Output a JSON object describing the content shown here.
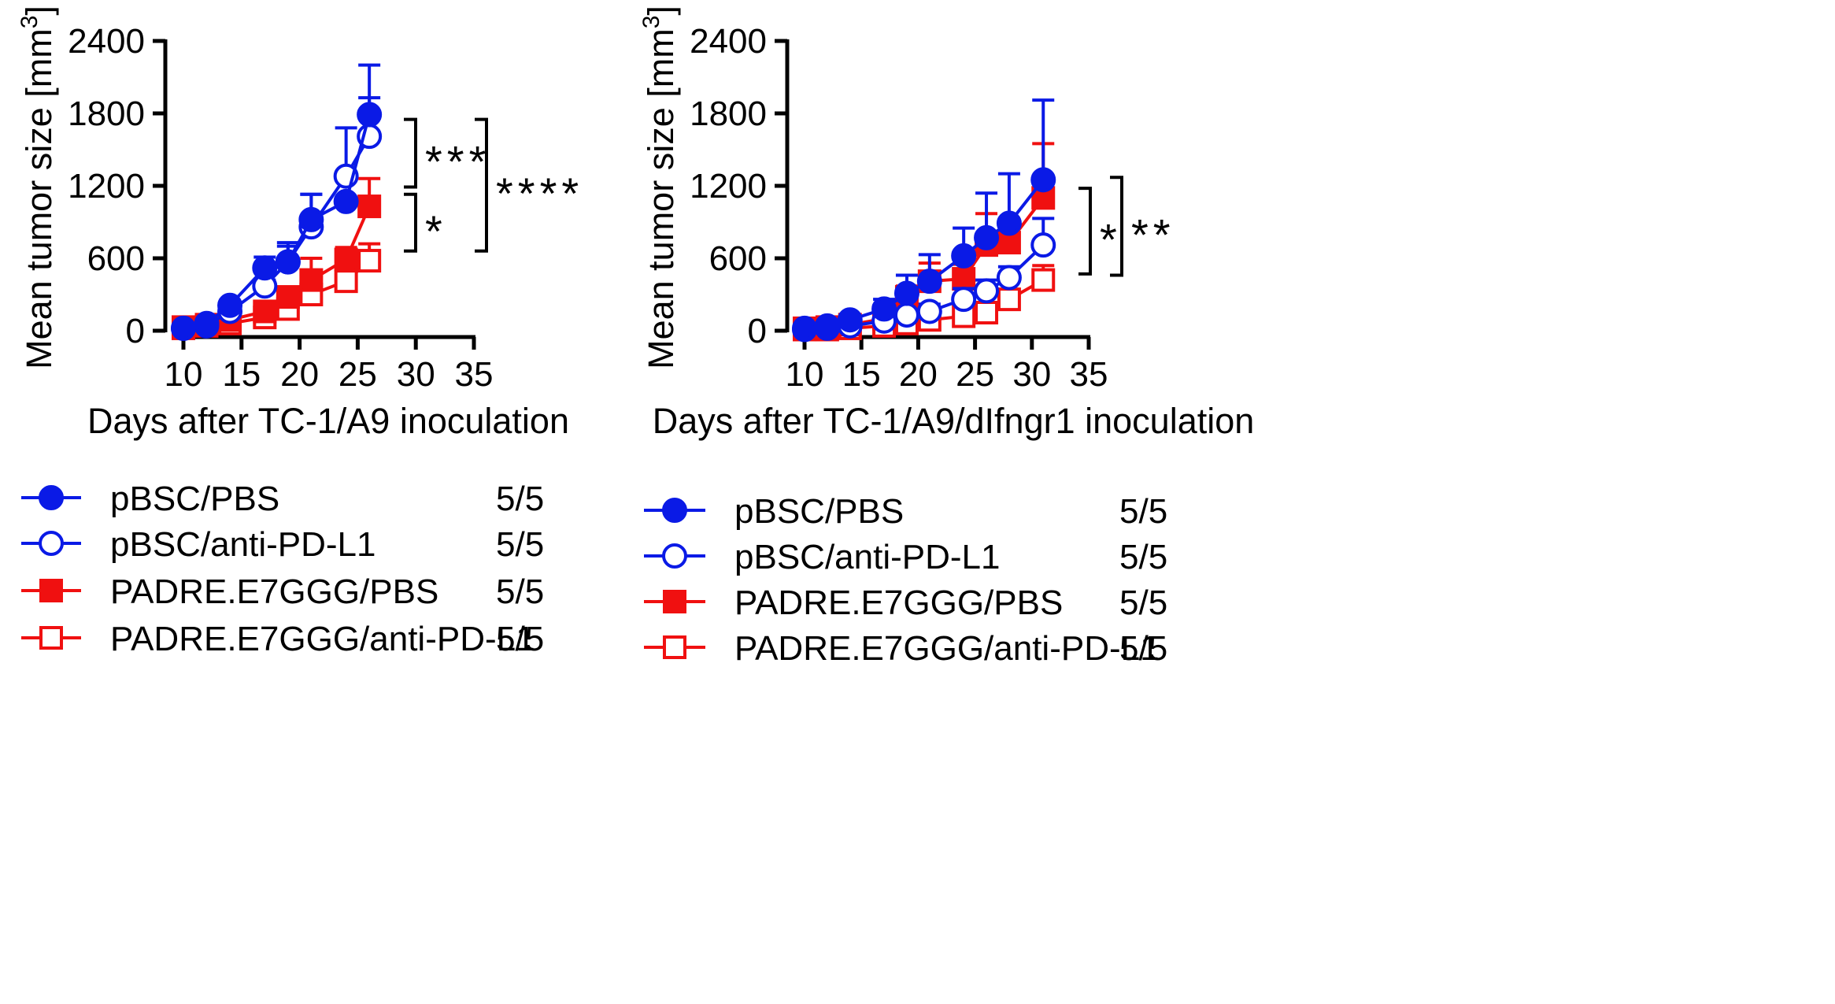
{
  "chart_data": [
    {
      "type": "line",
      "ylabel": "Mean tumor size [mm",
      "ylabel_sup": "3",
      "ylabel_close": "]",
      "xlabel": "Days after TC-1/A9 inoculation",
      "xlim": [
        10,
        35
      ],
      "ylim": [
        0,
        2400
      ],
      "xticks": [
        10,
        15,
        20,
        25,
        30,
        35
      ],
      "yticks": [
        0,
        600,
        1200,
        1800,
        2400
      ],
      "grid": false,
      "legend_position": "bottom",
      "series": [
        {
          "name": "pBSC/PBS",
          "count": "5/5",
          "color": "#0a1ae6",
          "marker": "filled-circle",
          "x": [
            10,
            12,
            14,
            17,
            19,
            21,
            24,
            26
          ],
          "y": [
            20,
            60,
            210,
            520,
            570,
            920,
            1070,
            1790
          ],
          "err": [
            0,
            20,
            40,
            90,
            130,
            210,
            0,
            410
          ]
        },
        {
          "name": "pBSC/anti-PD-L1",
          "count": "5/5",
          "color": "#0a1ae6",
          "marker": "open-circle",
          "x": [
            10,
            12,
            14,
            17,
            19,
            21,
            24,
            26
          ],
          "y": [
            20,
            40,
            160,
            370,
            570,
            860,
            1280,
            1610
          ],
          "err": [
            0,
            15,
            30,
            50,
            160,
            270,
            400,
            320
          ]
        },
        {
          "name": "PADRE.E7GGG/PBS",
          "count": "5/5",
          "color": "#f01010",
          "marker": "filled-square",
          "x": [
            10,
            12,
            14,
            17,
            19,
            21,
            24,
            26
          ],
          "y": [
            30,
            50,
            90,
            160,
            280,
            420,
            590,
            1030
          ],
          "err": [
            0,
            10,
            20,
            40,
            80,
            180,
            100,
            230
          ]
        },
        {
          "name": "PADRE.E7GGG/anti-PD-L1",
          "count": "5/5",
          "color": "#f01010",
          "marker": "open-square",
          "x": [
            10,
            12,
            14,
            17,
            19,
            21,
            24,
            26
          ],
          "y": [
            20,
            40,
            60,
            110,
            180,
            300,
            410,
            580
          ],
          "err": [
            0,
            10,
            15,
            25,
            45,
            60,
            80,
            140
          ]
        }
      ],
      "significance": [
        {
          "label": "***",
          "y_top": 1750,
          "y_bottom": 1190
        },
        {
          "label": "*",
          "y_top": 1130,
          "y_bottom": 660
        },
        {
          "label": "****",
          "y_top": 1750,
          "y_bottom": 660
        }
      ]
    },
    {
      "type": "line",
      "ylabel": "Mean tumor size [mm",
      "ylabel_sup": "3",
      "ylabel_close": "]",
      "xlabel": "Days after TC-1/A9/dIfngr1 inoculation",
      "xlim": [
        10,
        35
      ],
      "ylim": [
        0,
        2400
      ],
      "xticks": [
        10,
        15,
        20,
        25,
        30,
        35
      ],
      "yticks": [
        0,
        600,
        1200,
        1800,
        2400
      ],
      "grid": false,
      "legend_position": "bottom",
      "series": [
        {
          "name": "pBSC/PBS",
          "count": "5/5",
          "color": "#0a1ae6",
          "marker": "filled-circle",
          "x": [
            10,
            12,
            14,
            17,
            19,
            21,
            24,
            26,
            28,
            31
          ],
          "y": [
            20,
            40,
            90,
            180,
            310,
            410,
            620,
            770,
            890,
            1250
          ],
          "err": [
            0,
            15,
            40,
            80,
            150,
            220,
            230,
            370,
            410,
            660
          ]
        },
        {
          "name": "pBSC/anti-PD-L1",
          "count": "5/5",
          "color": "#0a1ae6",
          "marker": "open-circle",
          "x": [
            10,
            12,
            14,
            17,
            19,
            21,
            24,
            26,
            28,
            31
          ],
          "y": [
            10,
            20,
            40,
            80,
            130,
            160,
            260,
            330,
            440,
            710
          ],
          "err": [
            0,
            10,
            15,
            30,
            40,
            60,
            90,
            90,
            90,
            220
          ]
        },
        {
          "name": "PADRE.E7GGG/PBS",
          "count": "5/5",
          "color": "#f01010",
          "marker": "filled-square",
          "x": [
            10,
            12,
            14,
            17,
            19,
            21,
            24,
            26,
            28,
            31
          ],
          "y": [
            20,
            30,
            50,
            100,
            280,
            410,
            430,
            710,
            730,
            1100
          ],
          "err": [
            0,
            10,
            20,
            50,
            90,
            150,
            120,
            260,
            200,
            450
          ]
        },
        {
          "name": "PADRE.E7GGG/anti-PD-L1",
          "count": "5/5",
          "color": "#f01010",
          "marker": "open-square",
          "x": [
            10,
            12,
            14,
            17,
            19,
            21,
            24,
            26,
            28,
            31
          ],
          "y": [
            10,
            10,
            20,
            40,
            60,
            90,
            120,
            150,
            260,
            420
          ],
          "err": [
            0,
            5,
            10,
            20,
            30,
            40,
            40,
            50,
            70,
            120
          ]
        }
      ],
      "significance": [
        {
          "label": "*",
          "y_top": 1180,
          "y_bottom": 470
        },
        {
          "label": "**",
          "y_top": 1270,
          "y_bottom": 460
        }
      ]
    }
  ]
}
